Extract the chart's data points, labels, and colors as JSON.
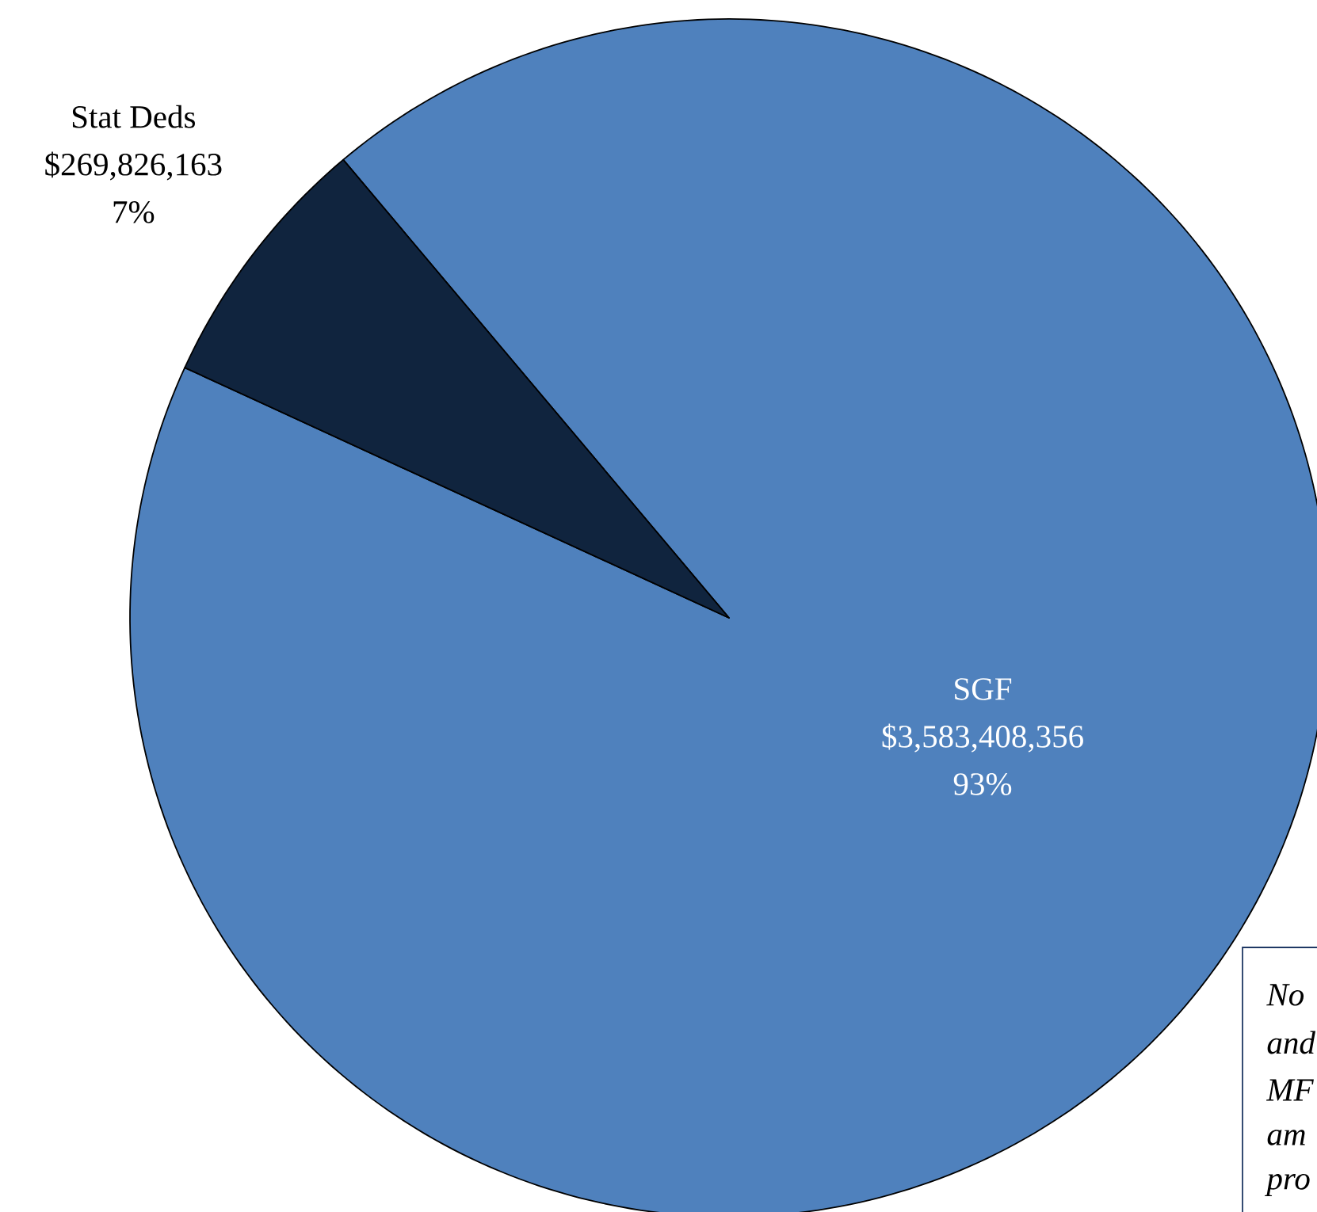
{
  "chart_data": {
    "type": "pie",
    "categories": [
      "SGF",
      "Stat Deds"
    ],
    "values": [
      3583408356,
      269826163
    ],
    "colors": [
      "#4f81bd",
      "#10243e"
    ],
    "value_labels": [
      "$3,583,408,356",
      "$269,826,163"
    ],
    "annotations": [
      {
        "text": "93%",
        "x": "SGF"
      },
      {
        "text": "7%",
        "x": "Stat Deds"
      },
      "No",
      "and",
      "MF",
      "am",
      "pro"
    ]
  }
}
